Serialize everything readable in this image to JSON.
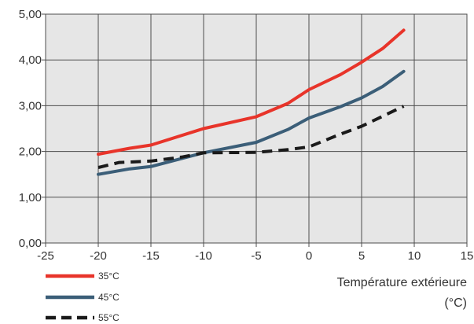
{
  "chart_data": {
    "type": "line",
    "xlabel_line1": "Température extérieure",
    "xlabel_line2": "(°C)",
    "ylabel": "",
    "title": "",
    "xlim": [
      -25,
      15
    ],
    "ylim": [
      0,
      5
    ],
    "x_ticks": [
      "-25",
      "-20",
      "-15",
      "-10",
      "-5",
      "0",
      "5",
      "10",
      "15"
    ],
    "y_ticks": [
      "0,00",
      "1,00",
      "2,00",
      "3,00",
      "4,00",
      "5,00"
    ],
    "grid": true,
    "legend_position": "bottom-left",
    "background_color": "#e6e6e6",
    "series": [
      {
        "name": "35°C",
        "color": "#e8342a",
        "style": "solid",
        "points": [
          [
            -20,
            1.94
          ],
          [
            -17,
            2.07
          ],
          [
            -15,
            2.14
          ],
          [
            -10,
            2.5
          ],
          [
            -5,
            2.76
          ],
          [
            -2,
            3.05
          ],
          [
            0,
            3.35
          ],
          [
            3,
            3.68
          ],
          [
            5,
            3.95
          ],
          [
            7,
            4.25
          ],
          [
            9,
            4.65
          ]
        ]
      },
      {
        "name": "45°C",
        "color": "#3b5e78",
        "style": "solid",
        "points": [
          [
            -20,
            1.5
          ],
          [
            -17,
            1.62
          ],
          [
            -15,
            1.67
          ],
          [
            -10,
            1.97
          ],
          [
            -5,
            2.2
          ],
          [
            -2,
            2.48
          ],
          [
            0,
            2.73
          ],
          [
            3,
            2.98
          ],
          [
            5,
            3.17
          ],
          [
            7,
            3.42
          ],
          [
            9,
            3.75
          ]
        ]
      },
      {
        "name": "55°C",
        "color": "#1a1a1a",
        "style": "dashed",
        "points": [
          [
            -20,
            1.65
          ],
          [
            -18,
            1.76
          ],
          [
            -15,
            1.79
          ],
          [
            -12,
            1.88
          ],
          [
            -10,
            1.97
          ],
          [
            -5,
            1.98
          ],
          [
            -2,
            2.04
          ],
          [
            0,
            2.1
          ],
          [
            3,
            2.38
          ],
          [
            5,
            2.55
          ],
          [
            9,
            2.99
          ]
        ]
      }
    ]
  }
}
